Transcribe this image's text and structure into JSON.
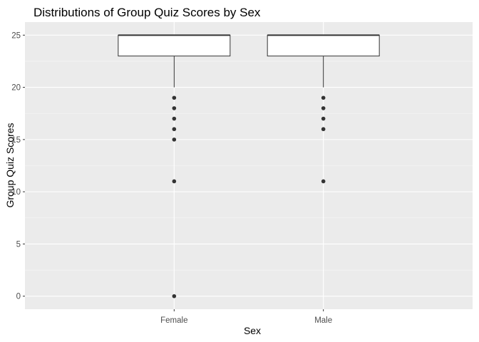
{
  "chart_data": {
    "type": "boxplot",
    "title": "Distributions of Group Quiz Scores by Sex",
    "xlabel": "Sex",
    "ylabel": "Group Quiz Scores",
    "categories": [
      "Female",
      "Male"
    ],
    "ylim": [
      -1.25,
      26.25
    ],
    "yticks": [
      0,
      5,
      10,
      15,
      20,
      25
    ],
    "grid": true,
    "legend": "none",
    "colors": {
      "panel": "#ebebeb",
      "grid_major": "#ffffff",
      "grid_minor": "#f7f7f7",
      "box_fill": "#ffffff",
      "box_line": "#333333",
      "outlier": "#333333"
    },
    "boxes": [
      {
        "category": "Female",
        "min": 20,
        "q1": 23,
        "median": 25,
        "q3": 25,
        "max": 25,
        "outliers": [
          19,
          18,
          17,
          16,
          15,
          11,
          0
        ]
      },
      {
        "category": "Male",
        "min": 20,
        "q1": 23,
        "median": 25,
        "q3": 25,
        "max": 25,
        "outliers": [
          19,
          18,
          17,
          16,
          11
        ]
      }
    ]
  }
}
